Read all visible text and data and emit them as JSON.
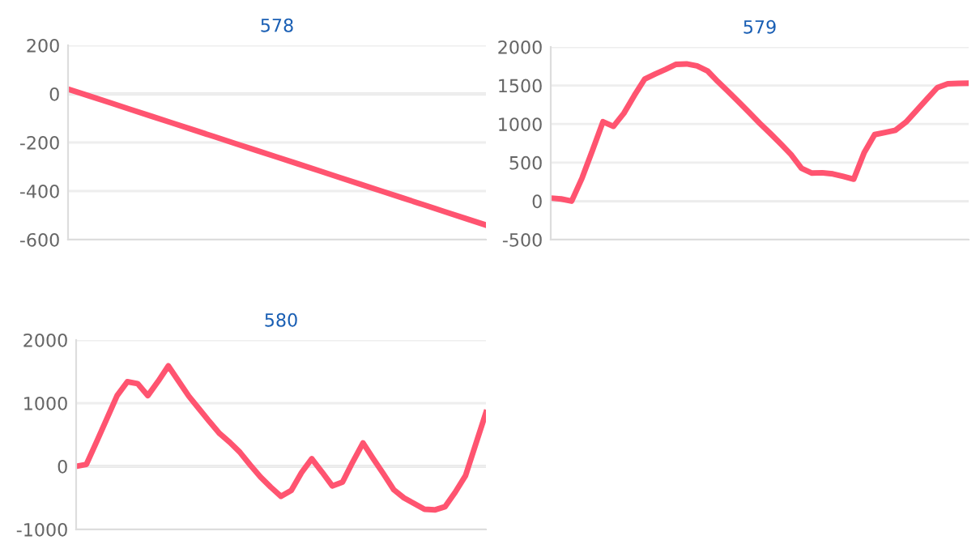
{
  "chart_data": [
    {
      "type": "line",
      "title": "578",
      "categories": [
        null,
        null,
        null,
        null,
        null,
        null,
        null,
        null,
        null,
        null,
        null,
        null,
        null,
        null,
        null,
        null,
        null,
        null,
        null,
        null,
        null
      ],
      "ylim": [
        -600,
        200
      ],
      "yticks": [
        -600,
        -400,
        -200,
        0,
        200
      ],
      "grid": "y",
      "tick_labels": "y",
      "marker": "none",
      "series": [
        {
          "color": "#ff5470",
          "values": [
            20,
            -8,
            -36,
            -64,
            -92,
            -120,
            -148,
            -176,
            -204,
            -232,
            -260,
            -288,
            -316,
            -344,
            -372,
            -400,
            -428,
            -456,
            -484,
            -512,
            -540
          ]
        }
      ]
    },
    {
      "type": "line",
      "title": "579",
      "categories": [
        null,
        null,
        null,
        null,
        null,
        null,
        null,
        null,
        null,
        null,
        null,
        null,
        null,
        null,
        null,
        null,
        null,
        null,
        null,
        null,
        null,
        null,
        null,
        null,
        null,
        null,
        null,
        null,
        null,
        null,
        null,
        null,
        null,
        null,
        null,
        null,
        null,
        null,
        null,
        null,
        null
      ],
      "ylim": [
        -500,
        2000
      ],
      "yticks": [
        -500,
        0,
        500,
        1000,
        1500,
        2000
      ],
      "grid": "y",
      "tick_labels": "y",
      "marker": "none",
      "series": [
        {
          "color": "#ff5470",
          "values": [
            40,
            28,
            0,
            300,
            660,
            1030,
            970,
            1140,
            1370,
            1585,
            1650,
            1710,
            1775,
            1780,
            1755,
            1690,
            1550,
            1420,
            1285,
            1150,
            1010,
            880,
            745,
            605,
            425,
            363,
            368,
            353,
            320,
            285,
            630,
            863,
            891,
            920,
            1025,
            1174,
            1323,
            1472,
            1522,
            1527,
            1530
          ]
        }
      ]
    },
    {
      "type": "line",
      "title": "580",
      "categories": [
        null,
        null,
        null,
        null,
        null,
        null,
        null,
        null,
        null,
        null,
        null,
        null,
        null,
        null,
        null,
        null,
        null,
        null,
        null,
        null,
        null,
        null,
        null,
        null,
        null,
        null,
        null,
        null,
        null,
        null,
        null,
        null,
        null,
        null,
        null,
        null,
        null,
        null,
        null,
        null,
        null
      ],
      "ylim": [
        -1000,
        2000
      ],
      "yticks": [
        -1000,
        0,
        1000,
        2000
      ],
      "grid": "y",
      "tick_labels": "y",
      "marker": "none",
      "series": [
        {
          "color": "#ff5470",
          "values": [
            0,
            30,
            390,
            755,
            1120,
            1340,
            1310,
            1120,
            1345,
            1590,
            1350,
            1110,
            910,
            710,
            520,
            380,
            220,
            20,
            -170,
            -330,
            -475,
            -380,
            -100,
            120,
            -90,
            -310,
            -250,
            70,
            370,
            120,
            -120,
            -370,
            -500,
            -590,
            -680,
            -690,
            -640,
            -410,
            -150,
            350,
            850
          ]
        }
      ]
    }
  ]
}
